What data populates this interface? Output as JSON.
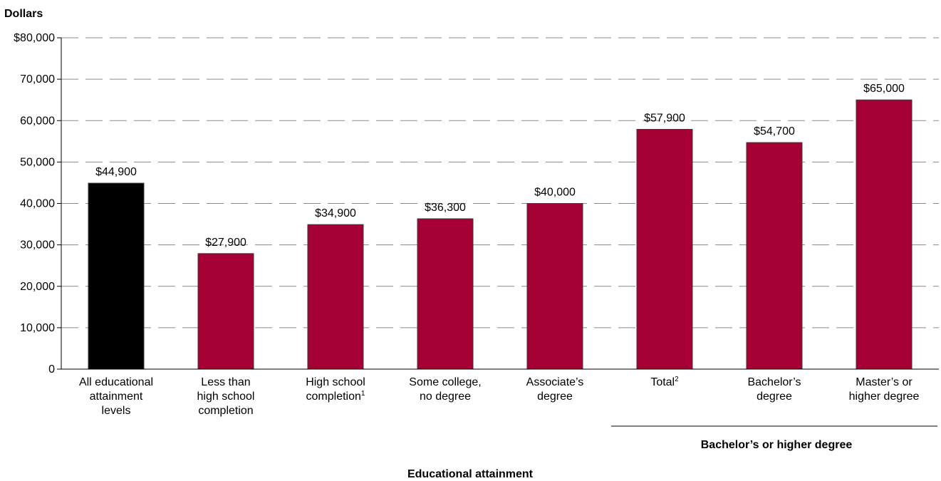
{
  "chart_data": {
    "type": "bar",
    "ylabel": "Dollars",
    "xlabel": "Educational attainment",
    "ylim": [
      0,
      80000
    ],
    "yticks": [
      "0",
      "10,000",
      "20,000",
      "30,000",
      "40,000",
      "50,000",
      "60,000",
      "70,000",
      "$80,000"
    ],
    "grid": true,
    "categories": [
      {
        "lines": [
          "All educational",
          "attainment",
          "levels"
        ],
        "sup": ""
      },
      {
        "lines": [
          "Less than",
          "high school",
          "completion"
        ],
        "sup": ""
      },
      {
        "lines": [
          "High school",
          "completion"
        ],
        "sup": "1"
      },
      {
        "lines": [
          "Some college,",
          "no degree"
        ],
        "sup": ""
      },
      {
        "lines": [
          "Associate’s",
          "degree"
        ],
        "sup": ""
      },
      {
        "lines": [
          "Total"
        ],
        "sup": "2"
      },
      {
        "lines": [
          "Bachelor’s",
          "degree"
        ],
        "sup": ""
      },
      {
        "lines": [
          "Master’s or",
          "higher degree"
        ],
        "sup": ""
      }
    ],
    "values": [
      44900,
      27900,
      34900,
      36300,
      40000,
      57900,
      54700,
      65000
    ],
    "value_labels": [
      "$44,900",
      "$27,900",
      "$34,900",
      "$36,300",
      "$40,000",
      "$57,900",
      "$54,700",
      "$65,000"
    ],
    "bar_colors": [
      "#000000",
      "#a50034",
      "#a50034",
      "#a50034",
      "#a50034",
      "#a50034",
      "#a50034",
      "#a50034"
    ],
    "group_label": "Bachelor’s or higher degree",
    "group_span": [
      5,
      7
    ]
  }
}
